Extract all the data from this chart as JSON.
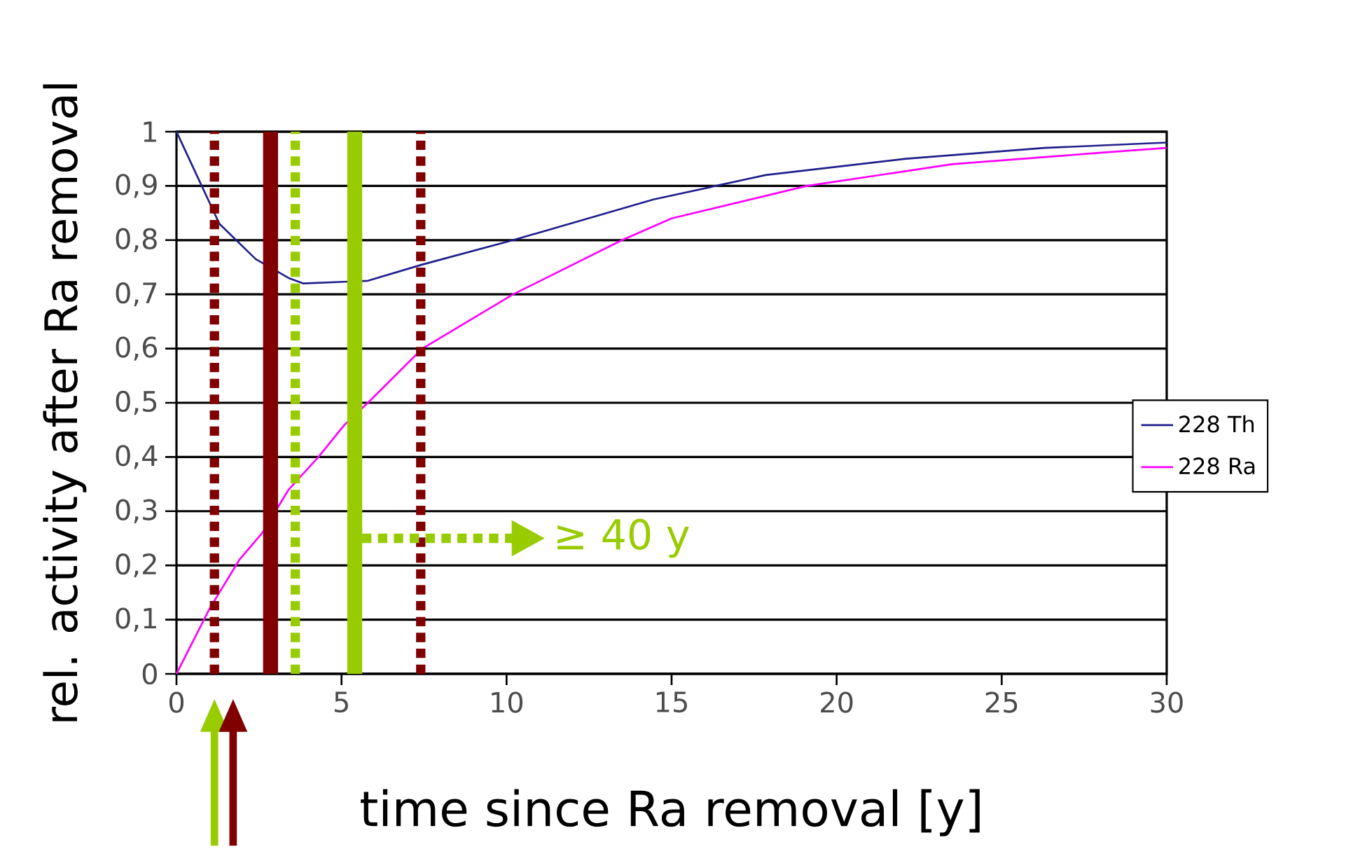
{
  "chart_data": {
    "type": "line",
    "xlabel": "time since Ra removal [y]",
    "ylabel": "rel. activity after Ra removal",
    "xlim": [
      0,
      30
    ],
    "xticks": [
      0,
      5,
      10,
      15,
      20,
      25,
      30
    ],
    "ylim": [
      0,
      1
    ],
    "yticks": [
      0,
      {
        "value": 0.1,
        "label": "0,1"
      },
      {
        "value": 0.2,
        "label": "0,2"
      },
      {
        "value": 0.3,
        "label": "0,3"
      },
      {
        "value": 0.4,
        "label": "0,4"
      },
      {
        "value": 0.5,
        "label": "0,5"
      },
      {
        "value": 0.6,
        "label": "0,6"
      },
      {
        "value": 0.7,
        "label": "0,7"
      },
      {
        "value": 0.8,
        "label": "0,8"
      },
      {
        "value": 0.9,
        "label": "0,9"
      },
      1
    ],
    "grid": "y",
    "legend": "right",
    "series": [
      {
        "name": "228 Th",
        "color": "#1f1f8c",
        "x": [
          0,
          1.3,
          2.4,
          3.4,
          3.85,
          5.8,
          7.45,
          10.2,
          14.45,
          17.85,
          22.1,
          26.3,
          30
        ],
        "values": [
          1,
          0.83,
          0.765,
          0.73,
          0.72,
          0.725,
          0.755,
          0.8,
          0.875,
          0.92,
          0.95,
          0.97,
          0.98
        ]
      },
      {
        "name": "228 Ra",
        "color": "#ff00ff",
        "x": [
          0,
          1.0,
          1.9,
          2.6,
          3.4,
          4.3,
          5.1,
          5.8,
          7.45,
          10.2,
          13.5,
          15,
          19.1,
          23.5,
          27.75,
          30
        ],
        "values": [
          0,
          0.12,
          0.21,
          0.26,
          0.34,
          0.4,
          0.46,
          0.5,
          0.6,
          0.7,
          0.8,
          0.84,
          0.9,
          0.94,
          0.96,
          0.97
        ]
      }
    ],
    "ref_lines": [
      {
        "axis": "x",
        "value": 1.15,
        "color": "#800000",
        "line_style": "dotted"
      },
      {
        "axis": "x",
        "value": 2.85,
        "color": "#800000",
        "line_style": "solid"
      },
      {
        "axis": "x",
        "value": 3.6,
        "color": "#99cc00",
        "line_style": "dotted"
      },
      {
        "axis": "x",
        "value": 5.4,
        "color": "#99cc00",
        "line_style": "solid"
      },
      {
        "axis": "x",
        "value": 7.4,
        "color": "#800000",
        "line_style": "dotted"
      }
    ],
    "annotations": [
      "≥ 40 y"
    ]
  }
}
